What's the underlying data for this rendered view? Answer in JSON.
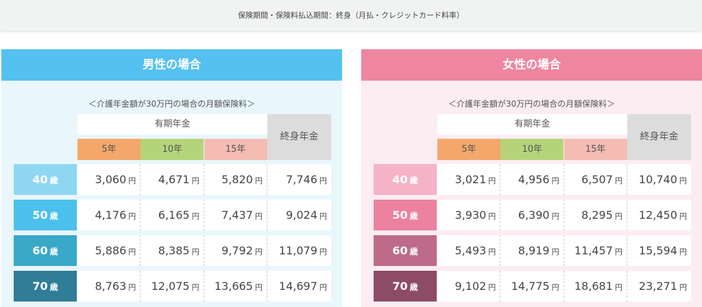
{
  "top_note": "保険期間・保険料払込期間：終身（月払・クレジットカード料率）",
  "subtitle": "＜介護年金額が30万円の場合の月額保険料＞",
  "col_group": "有期年金",
  "col_lifetime": "終身年金",
  "years": [
    "5年",
    "10年",
    "15年"
  ],
  "year_colors": [
    "#f3a76a",
    "#b5d47a",
    "#f4bcb3"
  ],
  "age_unit": "歳",
  "yen": "円",
  "panels": [
    {
      "title": "男性の場合",
      "color": "#55c1f0",
      "age_colors": [
        "#8fd6f3",
        "#4cc0ec",
        "#3aa8c9",
        "#2f7d97"
      ],
      "rows": [
        {
          "age": "40",
          "values": [
            "3,060",
            "4,671",
            "5,820",
            "7,746"
          ]
        },
        {
          "age": "50",
          "values": [
            "4,176",
            "6,165",
            "7,437",
            "9,024"
          ]
        },
        {
          "age": "60",
          "values": [
            "5,886",
            "8,385",
            "9,792",
            "11,079"
          ]
        },
        {
          "age": "70",
          "values": [
            "8,763",
            "12,075",
            "13,665",
            "14,697"
          ]
        }
      ]
    },
    {
      "title": "女性の場合",
      "color": "#ee86a0",
      "age_colors": [
        "#f4b3c6",
        "#ec82a0",
        "#be6b89",
        "#8e4b66"
      ],
      "rows": [
        {
          "age": "40",
          "values": [
            "3,021",
            "4,956",
            "6,507",
            "10,740"
          ]
        },
        {
          "age": "50",
          "values": [
            "3,930",
            "6,390",
            "8,295",
            "12,450"
          ]
        },
        {
          "age": "60",
          "values": [
            "5,493",
            "8,919",
            "11,457",
            "15,594"
          ]
        },
        {
          "age": "70",
          "values": [
            "9,102",
            "14,775",
            "18,681",
            "23,271"
          ]
        }
      ]
    }
  ]
}
